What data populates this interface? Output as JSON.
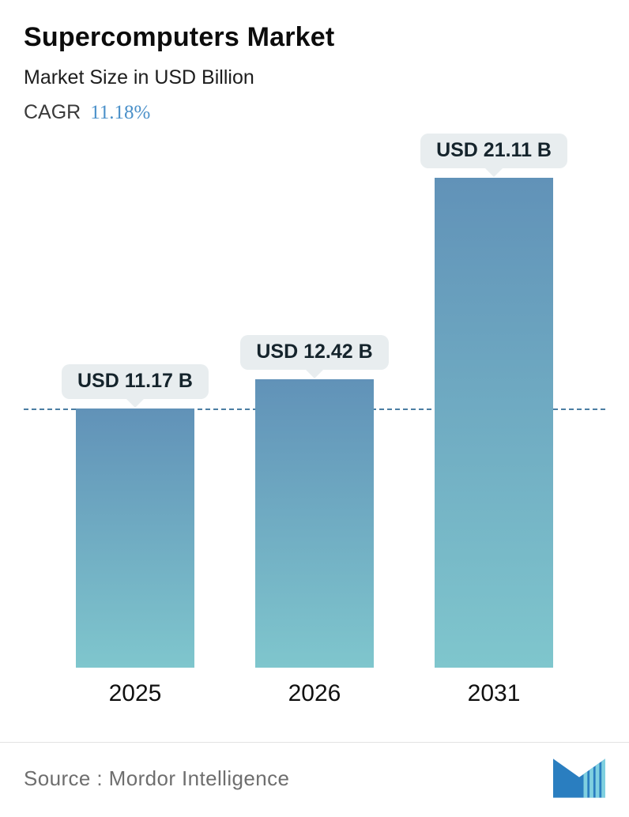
{
  "header": {
    "title": "Supercomputers Market",
    "subtitle": "Market Size in USD Billion",
    "cagr_label": "CAGR",
    "cagr_value": "11.18%"
  },
  "chart_data": {
    "type": "bar",
    "title": "Supercomputers Market",
    "subtitle": "Market Size in USD Billion",
    "cagr": "11.18%",
    "categories": [
      "2025",
      "2026",
      "2031"
    ],
    "values": [
      11.17,
      12.42,
      21.11
    ],
    "value_labels": [
      "USD 11.17 B",
      "USD 12.42 B",
      "USD 21.11 B"
    ],
    "unit": "USD Billion",
    "ylim": [
      0,
      21.11
    ],
    "grid": false,
    "legend": false,
    "reference_line": {
      "style": "dashed",
      "at_value": 11.17
    },
    "bar_gradient_top": "#6192b8",
    "bar_gradient_bottom": "#7fc6cd"
  },
  "footer": {
    "source_label": "Source :",
    "source_value": "Mordor Intelligence",
    "logo": "mordor-intelligence-logo"
  },
  "colors": {
    "cagr_value_blue": "#4a90c9",
    "badge_bg": "#e8edef",
    "dashed_line": "#4b7ea3",
    "title_text": "#0c0c0c",
    "source_text": "#6e6e6e",
    "logo_blue": "#2a7ec0",
    "logo_teal": "#7fd0e0"
  }
}
